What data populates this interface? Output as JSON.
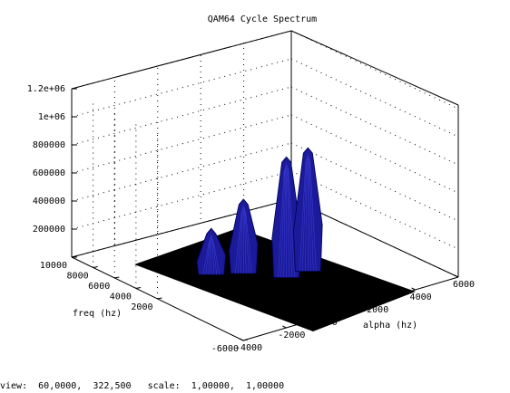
{
  "chart_data": {
    "type": "surface",
    "title": "QAM64 Cycle Spectrum",
    "xlabel": "alpha (hz)",
    "ylabel": "freq (hz)",
    "zlabel": "",
    "xlim": [
      -4000,
      6000
    ],
    "ylim": [
      -6000,
      10000
    ],
    "zlim": [
      0,
      1200000
    ],
    "x_ticks": [
      "-4000",
      "-2000",
      "0",
      "2000",
      "4000",
      "6000"
    ],
    "y_ticks": [
      "-6000",
      "2000",
      "4000",
      "6000",
      "8000",
      "10000"
    ],
    "z_ticks": [
      "200000",
      "400000",
      "600000",
      "800000",
      "1e+06",
      "1.2e+06"
    ],
    "data_extent": {
      "x": [
        -4000,
        4000
      ],
      "y": [
        -4000,
        6000
      ]
    },
    "grid": true,
    "floor_color": "#000000",
    "surface_color": "#1a1a9a",
    "series": [
      {
        "alpha": 2000,
        "freq": 0,
        "peak": 880000
      },
      {
        "alpha": 1000,
        "freq": 0,
        "peak": 860000
      },
      {
        "alpha": 0,
        "freq": 2000,
        "peak": 530000
      },
      {
        "alpha": -1000,
        "freq": 3000,
        "peak": 330000
      }
    ]
  },
  "status": {
    "view_label": "view:",
    "view_values": "60,0000,  322,500",
    "scale_label": "scale:",
    "scale_values": "1,00000,  1,00000"
  }
}
